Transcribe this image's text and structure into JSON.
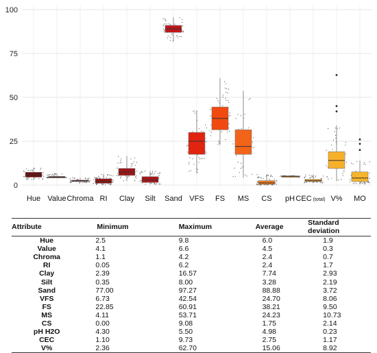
{
  "chart_data": {
    "type": "box",
    "ylim": [
      0,
      100
    ],
    "yticks": [
      0,
      25,
      50,
      75,
      100
    ],
    "grid": true,
    "categories": [
      {
        "label": "Hue",
        "q1": 4.5,
        "median": 5.8,
        "q3": 7.3,
        "whisker_low": 3.0,
        "whisker_high": 9.8,
        "color": "#6e0d10"
      },
      {
        "label": "Value",
        "q1": 4.2,
        "median": 4.6,
        "q3": 4.9,
        "whisker_low": 4.1,
        "whisker_high": 6.6,
        "color": "#7a1012"
      },
      {
        "label": "Chroma",
        "q1": 2.0,
        "median": 2.4,
        "q3": 2.8,
        "whisker_low": 1.1,
        "whisker_high": 4.2,
        "color": "#8a1212"
      },
      {
        "label": "RI",
        "q1": 1.0,
        "median": 2.0,
        "q3": 3.6,
        "whisker_low": 0.05,
        "whisker_high": 6.2,
        "color": "#941414"
      },
      {
        "label": "Clay",
        "q1": 5.5,
        "median": 7.5,
        "q3": 9.5,
        "whisker_low": 2.39,
        "whisker_high": 16.57,
        "color": "#9e1516"
      },
      {
        "label": "Silt",
        "q1": 1.5,
        "median": 3.0,
        "q3": 4.8,
        "whisker_low": 0.35,
        "whisker_high": 8.0,
        "color": "#a81717"
      },
      {
        "label": "Sand",
        "q1": 87.0,
        "median": 89.0,
        "q3": 91.0,
        "whisker_low": 82.0,
        "whisker_high": 95.5,
        "color": "#c0161b"
      },
      {
        "label": "VFS",
        "q1": 17.5,
        "median": 25.0,
        "q3": 30.0,
        "whisker_low": 6.73,
        "whisker_high": 42.54,
        "color": "#e02410"
      },
      {
        "label": "FS",
        "q1": 31.5,
        "median": 38.0,
        "q3": 44.5,
        "whisker_low": 22.85,
        "whisker_high": 60.91,
        "color": "#f04a10"
      },
      {
        "label": "MS",
        "q1": 17.5,
        "median": 22.0,
        "q3": 31.5,
        "whisker_low": 4.11,
        "whisker_high": 53.71,
        "color": "#f2641a"
      },
      {
        "label": "CS",
        "q1": 0.4,
        "median": 1.2,
        "q3": 2.5,
        "whisker_low": 0.0,
        "whisker_high": 6.0,
        "color": "#f07c1c"
      },
      {
        "label": "pH",
        "q1": 4.8,
        "median": 5.0,
        "q3": 5.2,
        "whisker_low": 4.3,
        "whisker_high": 5.5,
        "color": "#f08a20"
      },
      {
        "label": "CEC",
        "label_suffix": "(total)",
        "q1": 2.0,
        "median": 2.5,
        "q3": 3.3,
        "whisker_low": 1.1,
        "whisker_high": 6.0,
        "color": "#f4a424"
      },
      {
        "label": "V%",
        "q1": 9.5,
        "median": 14.0,
        "q3": 19.0,
        "whisker_low": 2.36,
        "whisker_high": 34.0,
        "outliers": [
          42.0,
          45.0,
          62.7
        ],
        "color": "#f7b02a"
      },
      {
        "label": "MO",
        "q1": 2.0,
        "median": 4.0,
        "q3": 7.5,
        "whisker_low": 0.5,
        "whisker_high": 14.0,
        "outliers": [
          20.0,
          23.5,
          26.0
        ],
        "color": "#f7b52c"
      }
    ]
  },
  "table": {
    "headers": [
      "Attribute",
      "Minimum",
      "Maximum",
      "Average",
      "Standard deviation"
    ],
    "rows": [
      [
        "Hue",
        "2.5",
        "9.8",
        "6.0",
        "1.9"
      ],
      [
        "Value",
        "4.1",
        "6.6",
        "4.5",
        "0.3"
      ],
      [
        "Chroma",
        "1.1",
        "4.2",
        "2.4",
        "0.7"
      ],
      [
        "RI",
        "0.05",
        "6.2",
        "2.4",
        "1.7"
      ],
      [
        "Clay",
        "2.39",
        "16.57",
        "7.74",
        "2.93"
      ],
      [
        "Silt",
        "0.35",
        "8.00",
        "3.28",
        "2.19"
      ],
      [
        "Sand",
        "77.00",
        "97.27",
        "88.88",
        "3.72"
      ],
      [
        "VFS",
        "6.73",
        "42.54",
        "24.70",
        "8.06"
      ],
      [
        "FS",
        "22.85",
        "60.91",
        "38.21",
        "9.50"
      ],
      [
        "MS",
        "4.11",
        "53.71",
        "24.23",
        "10.73"
      ],
      [
        "CS",
        "0.00",
        "9.08",
        "1.75",
        "2.14"
      ],
      [
        "pH H2O",
        "4.30",
        "5.50",
        "4.98",
        "0.23"
      ],
      [
        "CEC",
        "1.10",
        "9.73",
        "2.75",
        "1.17"
      ],
      [
        "V%",
        "2.36",
        "62.70",
        "15.06",
        "8.92"
      ]
    ]
  }
}
